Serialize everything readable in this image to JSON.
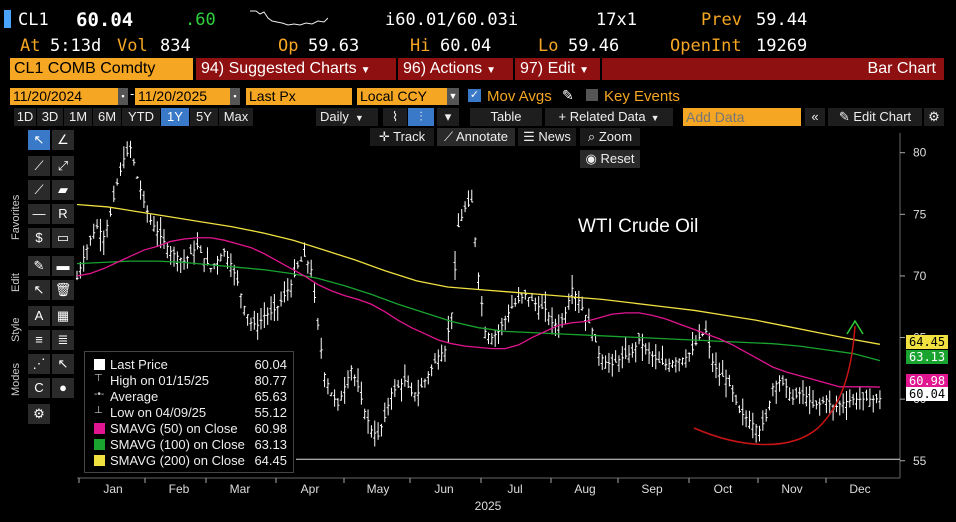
{
  "quote": {
    "ticker": "CL1",
    "last": "60.04",
    "change": ".60",
    "bid_ask": "i60.01/60.03i",
    "size": "17x1",
    "prev_label": "Prev",
    "prev": "59.44",
    "at_label": "At",
    "time": "5:13d",
    "vol_label": "Vol",
    "vol": "834",
    "op_label": "Op",
    "open": "59.63",
    "hi_label": "Hi",
    "high": "60.04",
    "lo_label": "Lo",
    "low": "59.46",
    "oi_label": "OpenInt",
    "open_int": "19269"
  },
  "menubar": {
    "security": "CL1 COMB Comdty",
    "suggested": "94) Suggested Charts",
    "actions": "96) Actions",
    "edit": "97) Edit",
    "chart_type": "Bar Chart"
  },
  "controls": {
    "start_date": "11/20/2024",
    "end_date": "11/20/2025",
    "field": "Last Px",
    "currency": "Local CCY",
    "mov_avgs": "Mov Avgs",
    "key_events": "Key Events"
  },
  "toolbar": {
    "periods": [
      "1D",
      "3D",
      "1M",
      "6M",
      "YTD",
      "1Y",
      "5Y",
      "Max"
    ],
    "selected_period": "1Y",
    "frequency": "Daily",
    "table": "Table",
    "related": "+ Related Data",
    "add_data_placeholder": "Add Data",
    "edit_chart": "Edit Chart"
  },
  "chart_tools": {
    "track": "Track",
    "annotate": "Annotate",
    "news": "News",
    "zoom": "Zoom",
    "reset": "Reset"
  },
  "sidebar": {
    "favorites": "Favorites",
    "edit": "Edit",
    "style": "Style",
    "modes": "Modes"
  },
  "colors": {
    "sma50": "#e0158f",
    "sma100": "#19a32f",
    "sma200": "#f0e040",
    "accent": "#f5a623",
    "menu_red": "#8e1010",
    "trend_arrow": "#c81414"
  },
  "legend": {
    "rows": [
      {
        "label": "Last Price",
        "value": "60.04"
      },
      {
        "label": "High on 01/15/25",
        "value": "80.77"
      },
      {
        "label": "Average",
        "value": "65.63"
      },
      {
        "label": "Low on 04/09/25",
        "value": "55.12"
      },
      {
        "label": "SMAVG (50)  on Close",
        "value": "60.98"
      },
      {
        "label": "SMAVG (100)  on Close",
        "value": "63.13"
      },
      {
        "label": "SMAVG (200)  on Close",
        "value": "64.45"
      }
    ]
  },
  "chart_data": {
    "type": "bar",
    "title": "",
    "annotation": "WTI Crude Oil",
    "xlabel": "2025",
    "ylabel": "",
    "x_ticks": [
      "Jan",
      "Feb",
      "Mar",
      "Apr",
      "May",
      "Jun",
      "Jul",
      "Aug",
      "Sep",
      "Oct",
      "Nov",
      "Dec"
    ],
    "y_ticks": [
      55,
      60,
      65,
      70,
      75,
      80
    ],
    "ylim": [
      53.6,
      81.6
    ],
    "price_tags": [
      {
        "name": "sma200",
        "value": "64.45"
      },
      {
        "name": "sma100",
        "value": "63.13"
      },
      {
        "name": "sma50",
        "value": "60.98"
      },
      {
        "name": "last",
        "value": "60.04"
      }
    ],
    "price_x": [
      0,
      3,
      6,
      9,
      12,
      15,
      18,
      21,
      24,
      27,
      30,
      33,
      36,
      39,
      42,
      45,
      48,
      51,
      54,
      57,
      60,
      63,
      66,
      69,
      72,
      75,
      78,
      81,
      84,
      87,
      90,
      93,
      96,
      99,
      102,
      105,
      108,
      111,
      114,
      117,
      120,
      123,
      126,
      129,
      132,
      135,
      138,
      141,
      144,
      147,
      150,
      153,
      156,
      159,
      162,
      165,
      168,
      171,
      174,
      177,
      180,
      183,
      186,
      189,
      192,
      195,
      198,
      201,
      204,
      207,
      210,
      213,
      216,
      219,
      222,
      225,
      228,
      231,
      234,
      237,
      240,
      243,
      246,
      249,
      252,
      255,
      258,
      261,
      264,
      267,
      270,
      273,
      276,
      279,
      282,
      285,
      288,
      291,
      294,
      297,
      300,
      303,
      306,
      309,
      312,
      315,
      318,
      321,
      324,
      327,
      330,
      333,
      336,
      339,
      342,
      345,
      348,
      351,
      354,
      357,
      360
    ],
    "price": [
      69.8,
      71.5,
      73.0,
      74.0,
      73.2,
      75.0,
      77.5,
      79.5,
      80.4,
      78.0,
      76.0,
      74.5,
      73.6,
      72.8,
      72.0,
      71.6,
      71.2,
      71.8,
      72.4,
      71.4,
      70.6,
      71.3,
      72.0,
      71.0,
      69.5,
      67.5,
      66.2,
      66.0,
      66.8,
      67.0,
      67.5,
      68.4,
      69.3,
      70.8,
      71.6,
      70.5,
      66.0,
      62.0,
      60.5,
      59.5,
      61.0,
      62.5,
      61.0,
      59.0,
      57.5,
      57.0,
      58.5,
      60.5,
      61.0,
      61.5,
      60.5,
      60.5,
      61.5,
      62.5,
      63.5,
      64.0,
      67.0,
      74.0,
      75.5,
      76.0,
      70.0,
      65.5,
      65.0,
      65.5,
      66.5,
      67.5,
      68.0,
      68.5,
      68.0,
      67.5,
      67.3,
      66.2,
      66.0,
      67.0,
      69.0,
      68.0,
      66.8,
      65.6,
      63.7,
      63.0,
      62.8,
      63.2,
      63.5,
      63.8,
      64.8,
      64.0,
      63.5,
      63.0,
      62.8,
      63.0,
      63.2,
      63.4,
      64.0,
      65.0,
      65.5,
      63.0,
      62.0,
      61.7,
      60.5,
      59.0,
      58.5,
      58.0,
      57.5,
      58.5,
      61.0,
      61.5,
      61.0,
      60.0,
      60.5,
      60.2,
      59.5,
      59.6,
      60.0,
      59.2,
      59.6,
      59.8,
      60.0,
      60.0,
      60.0,
      60.0,
      60.04
    ],
    "sma50": [
      70.0,
      70.2,
      70.6,
      71.1,
      71.6,
      72.1,
      72.4,
      72.8,
      73.0,
      73.1,
      73.1,
      72.9,
      72.6,
      72.3,
      71.8,
      71.2,
      70.6,
      70.0,
      69.3,
      68.8,
      68.4,
      68.1,
      67.7,
      67.1,
      66.4,
      65.8,
      65.3,
      64.8,
      64.5,
      64.3,
      64.2,
      64.1,
      64.1,
      64.4,
      65.0,
      65.5,
      66.0,
      66.2,
      66.3,
      66.6,
      66.9,
      67.0,
      67.0,
      66.8,
      66.5,
      66.1,
      65.7,
      65.3,
      64.9,
      64.4,
      63.8,
      63.2,
      62.6,
      62.2,
      61.9,
      61.6,
      61.3,
      61.0,
      61.0,
      61.0,
      60.98
    ],
    "sma100": [
      71.0,
      71.1,
      71.2,
      71.2,
      71.1,
      70.9,
      70.7,
      70.5,
      70.2,
      69.8,
      69.2,
      68.5,
      67.7,
      67.0,
      66.3,
      65.8,
      65.5,
      65.4,
      65.3,
      65.2,
      65.1,
      65.0,
      64.9,
      64.8,
      64.7,
      64.6,
      64.5,
      64.3,
      64.0,
      63.7,
      63.13
    ],
    "sma200": [
      75.8,
      75.6,
      75.2,
      74.8,
      74.4,
      74.0,
      73.5,
      72.9,
      72.1,
      71.3,
      70.4,
      69.6,
      69.1,
      68.9,
      68.7,
      68.5,
      68.3,
      68.1,
      67.8,
      67.5,
      67.2,
      66.8,
      66.4,
      65.9,
      65.4,
      64.9,
      64.45
    ],
    "projection_curve": "u-shaped arrow from late Sep lows up through Dec"
  }
}
